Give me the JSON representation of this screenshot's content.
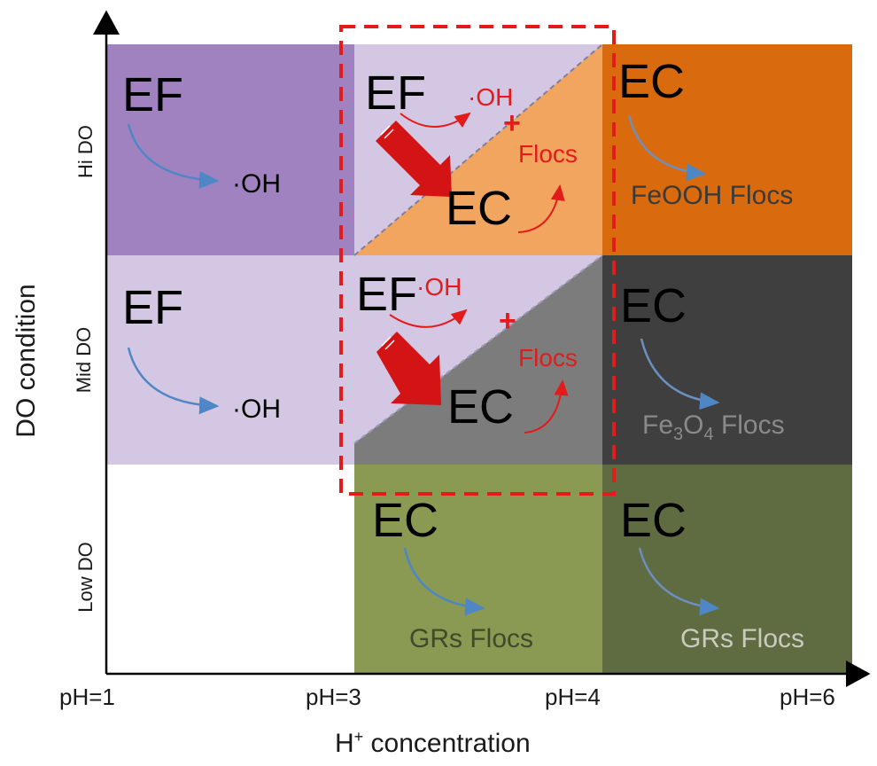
{
  "axes": {
    "x_title_main": "H",
    "x_title_sup": "+",
    "x_title_rest": " concentration",
    "y_title": "DO  condition",
    "x_ticks": [
      "pH=1",
      "pH=3",
      "pH=4",
      "pH=6"
    ],
    "y_rows": [
      "Hi DO",
      "Mid DO",
      "Low DO"
    ]
  },
  "cells": {
    "hi_ph1": {
      "process": "EF",
      "product": "·OH"
    },
    "mid_ph1": {
      "process": "EF",
      "product": "·OH"
    },
    "hi_ph3": {
      "process_top": "EF",
      "product_top": "·OH",
      "plus": "+",
      "flocs": "Flocs",
      "process_bottom": "EC"
    },
    "mid_ph3": {
      "process_top": "EF",
      "product_top": "·OH",
      "plus": "+",
      "flocs": "Flocs",
      "process_bottom": "EC"
    },
    "hi_ph4": {
      "process": "EC",
      "product": "FeOOH Flocs"
    },
    "mid_ph4": {
      "process": "EC",
      "product_pre": "Fe",
      "sub1": "3",
      "product_mid": "O",
      "sub2": "4",
      "product_post": " Flocs"
    },
    "low_ph3": {
      "process": "EC",
      "product": "GRs Flocs"
    },
    "low_ph4": {
      "process": "EC",
      "product": "GRs Flocs"
    }
  },
  "colors": {
    "purple_dark": "#9f82bf",
    "purple_light": "#d4c7e3",
    "orange_light": "#f2a55f",
    "orange_dark": "#d96b0e",
    "grey_mid": "#7c7c7c",
    "grey_dark": "#3f3f3f",
    "olive_light": "#8a9a52",
    "olive_dark": "#5f6b40",
    "red": "#e31b1b",
    "blue_arrow": "#4f86c6"
  }
}
